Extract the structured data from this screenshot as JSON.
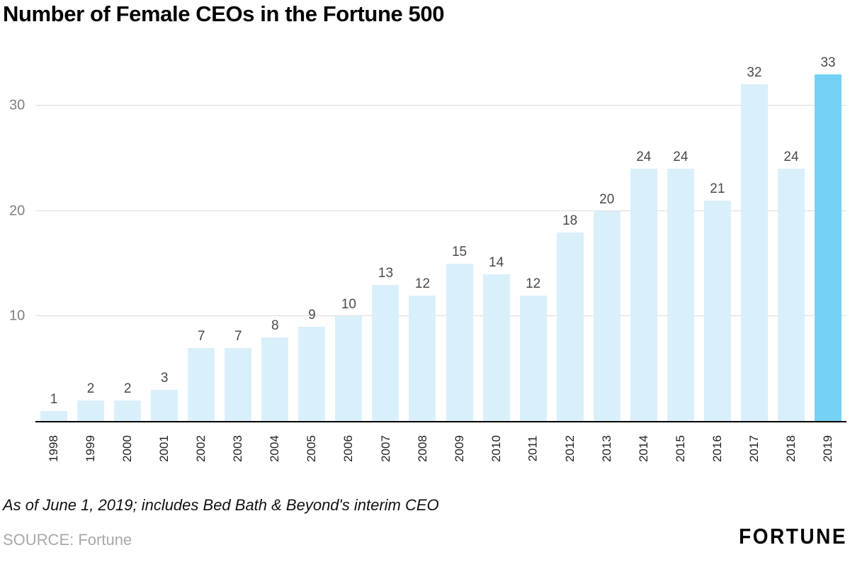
{
  "page": {
    "title": "Number of Female CEOs in the Fortune 500",
    "footnote": "As of June 1, 2019; includes Bed Bath & Beyond's interim CEO",
    "source": "SOURCE: Fortune",
    "brand": "FORTUNE"
  },
  "chart_data": {
    "type": "bar",
    "title": "Number of Female CEOs in the Fortune 500",
    "categories": [
      "1998",
      "1999",
      "2000",
      "2001",
      "2002",
      "2003",
      "2004",
      "2005",
      "2006",
      "2007",
      "2008",
      "2009",
      "2010",
      "2011",
      "2012",
      "2013",
      "2014",
      "2015",
      "2016",
      "2017",
      "2018",
      "2019"
    ],
    "values": [
      1,
      2,
      2,
      3,
      7,
      7,
      8,
      9,
      10,
      13,
      12,
      15,
      14,
      12,
      18,
      20,
      24,
      24,
      21,
      32,
      24,
      33
    ],
    "highlight_index": 21,
    "xlabel": "",
    "ylabel": "",
    "yticks": [
      10,
      20,
      30
    ],
    "ylim": [
      0,
      36
    ],
    "grid": true,
    "legend": "none",
    "colors": {
      "bar": "#d9f0fb",
      "highlight_bar": "#74d1f6",
      "value_label": "#4a4a4a",
      "tick_label": "#808080",
      "gridline": "#dcdcdc",
      "axis": "#000000"
    }
  }
}
